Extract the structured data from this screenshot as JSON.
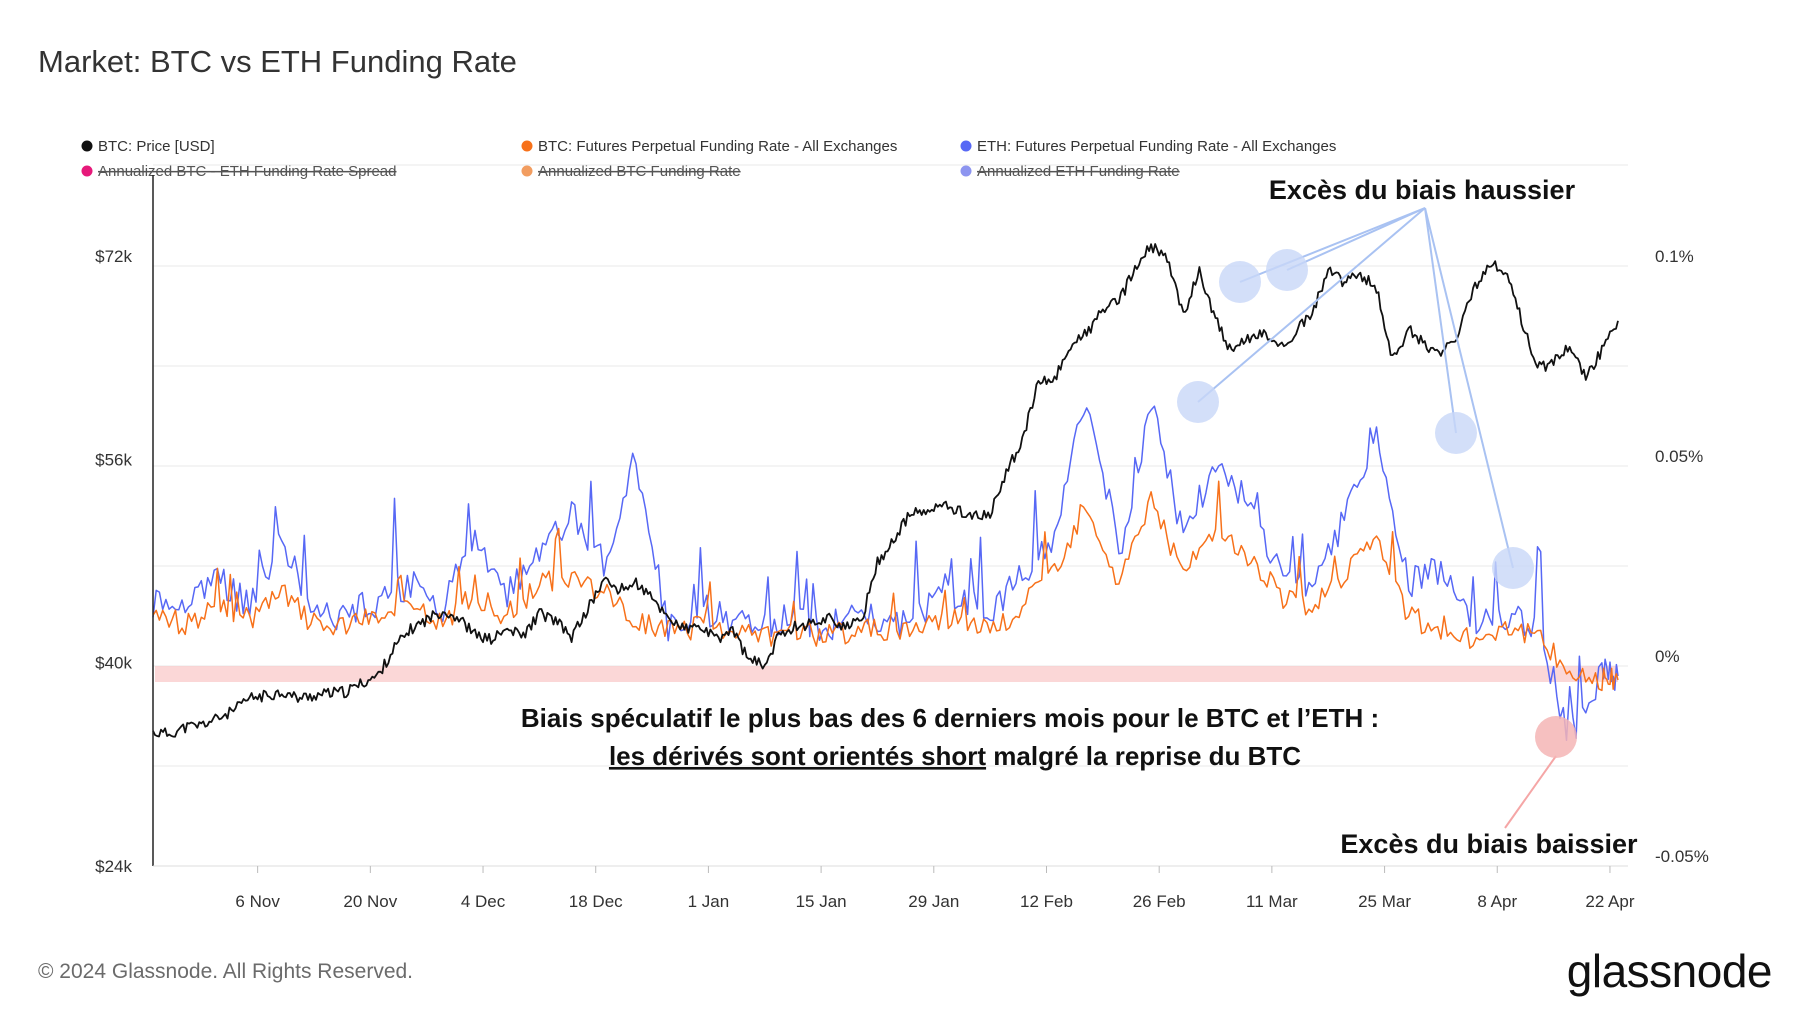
{
  "title": "Market: BTC vs ETH Funding Rate",
  "footer": "© 2024 Glassnode. All Rights Reserved.",
  "brand": "glassnode",
  "chart_data": {
    "type": "line",
    "x_tick_labels": [
      "6 Nov",
      "20 Nov",
      "4 Dec",
      "18 Dec",
      "1 Jan",
      "15 Jan",
      "29 Jan",
      "12 Feb",
      "26 Feb",
      "11 Mar",
      "25 Mar",
      "8 Apr",
      "22 Apr"
    ],
    "y_left_labels": [
      "$72k",
      "$56k",
      "$40k",
      "$24k"
    ],
    "y_left_values": [
      72000,
      56000,
      40000,
      24000
    ],
    "y_right_labels": [
      "0.1%",
      "0.05%",
      "0%",
      "-0.05%"
    ],
    "y_right_values": [
      0.1,
      0.05,
      0,
      -0.05
    ],
    "legend": [
      {
        "label": "BTC: Price [USD]",
        "color": "#111111",
        "active": true
      },
      {
        "label": "BTC: Futures Perpetual Funding Rate - All Exchanges",
        "color": "#f7711a",
        "active": true
      },
      {
        "label": "ETH: Futures Perpetual Funding Rate - All Exchanges",
        "color": "#5768f5",
        "active": true
      },
      {
        "label": "Annualized BTC - ETH Funding Rate Spread",
        "color": "#e6197a",
        "active": false
      },
      {
        "label": "Annualized BTC Funding Rate",
        "color": "#f29d60",
        "active": false
      },
      {
        "label": "Annualized ETH Funding Rate",
        "color": "#8d95f0",
        "active": false
      }
    ],
    "series": [
      {
        "name": "BTC: Price [USD]",
        "axis": "left",
        "color": "#111111",
        "x": [
          0,
          2,
          4,
          6,
          8,
          10,
          12,
          14,
          16,
          18,
          20,
          22,
          24,
          26,
          28,
          30,
          32,
          34,
          36,
          38,
          40,
          42,
          44,
          46,
          48,
          50,
          52,
          54,
          56,
          58,
          60,
          62,
          64,
          66,
          68,
          70,
          72,
          74,
          76,
          78,
          80,
          82,
          84,
          86,
          88,
          90,
          92,
          94,
          96,
          98,
          100,
          102,
          104,
          106,
          108,
          110,
          112,
          114,
          116,
          118,
          120,
          122,
          124,
          126,
          128,
          130,
          132,
          134,
          136,
          138,
          140,
          142,
          144,
          146,
          148,
          150,
          152,
          154,
          156,
          158,
          160,
          162,
          164,
          166,
          168,
          170,
          172,
          174,
          176,
          178,
          180,
          182
        ],
        "values": [
          34500,
          34400,
          34900,
          35100,
          35600,
          36200,
          37200,
          37400,
          37700,
          37200,
          37400,
          37600,
          37700,
          38400,
          39000,
          41200,
          42600,
          43400,
          44100,
          43500,
          42200,
          41800,
          42600,
          42100,
          43900,
          43300,
          42000,
          44200,
          46500,
          45700,
          46300,
          45000,
          43600,
          42600,
          42800,
          41800,
          42600,
          40200,
          39800,
          42400,
          42900,
          43100,
          43600,
          42700,
          43300,
          47900,
          49600,
          51700,
          51800,
          52400,
          52000,
          51500,
          51600,
          55000,
          57500,
          62000,
          62300,
          65000,
          65900,
          67800,
          68400,
          71000,
          72800,
          71700,
          67400,
          70800,
          67100,
          64300,
          65500,
          66000,
          64700,
          66100,
          67400,
          71000,
          69800,
          70600,
          69400,
          63900,
          66200,
          65100,
          64200,
          65600,
          69200,
          71500,
          70800,
          67000,
          63200,
          63600,
          65100,
          62400,
          64600,
          66900
        ]
      },
      {
        "name": "BTC: Futures Perpetual Funding Rate - All Exchanges",
        "axis": "right",
        "color": "#f7711a",
        "x": [
          0,
          4,
          8,
          12,
          16,
          20,
          24,
          28,
          32,
          36,
          40,
          44,
          48,
          52,
          56,
          60,
          64,
          68,
          72,
          76,
          80,
          84,
          88,
          92,
          96,
          100,
          104,
          108,
          112,
          116,
          120,
          124,
          128,
          132,
          136,
          140,
          144,
          148,
          152,
          156,
          160,
          164,
          168,
          172,
          176,
          180,
          182
        ],
        "values": [
          0.011,
          0.008,
          0.012,
          0.009,
          0.016,
          0.008,
          0.007,
          0.01,
          0.012,
          0.008,
          0.015,
          0.01,
          0.018,
          0.02,
          0.016,
          0.009,
          0.006,
          0.007,
          0.006,
          0.005,
          0.006,
          0.005,
          0.007,
          0.006,
          0.008,
          0.01,
          0.006,
          0.012,
          0.022,
          0.038,
          0.018,
          0.04,
          0.02,
          0.032,
          0.025,
          0.015,
          0.011,
          0.021,
          0.03,
          0.01,
          0.006,
          0.004,
          0.008,
          0.005,
          -0.004,
          -0.006,
          -0.006
        ]
      },
      {
        "name": "ETH: Futures Perpetual Funding Rate - All Exchanges",
        "axis": "right",
        "color": "#5768f5",
        "x": [
          0,
          4,
          8,
          12,
          16,
          20,
          24,
          28,
          32,
          36,
          40,
          44,
          48,
          52,
          56,
          60,
          64,
          68,
          72,
          76,
          80,
          84,
          88,
          92,
          96,
          100,
          104,
          108,
          112,
          116,
          120,
          124,
          128,
          132,
          136,
          140,
          144,
          148,
          152,
          156,
          160,
          164,
          168,
          172,
          176,
          180,
          182
        ],
        "values": [
          0.013,
          0.012,
          0.02,
          0.012,
          0.03,
          0.01,
          0.01,
          0.014,
          0.018,
          0.012,
          0.028,
          0.015,
          0.026,
          0.035,
          0.024,
          0.05,
          0.006,
          0.012,
          0.008,
          0.007,
          0.008,
          0.007,
          0.012,
          0.008,
          0.012,
          0.016,
          0.01,
          0.02,
          0.03,
          0.065,
          0.026,
          0.062,
          0.03,
          0.048,
          0.038,
          0.022,
          0.016,
          0.035,
          0.055,
          0.018,
          0.022,
          0.008,
          0.01,
          0.007,
          -0.02,
          -0.004,
          -0.005
        ]
      }
    ],
    "annotations": [
      {
        "text": "Excès du biais haussier"
      },
      {
        "text": "Excès du biais baissier"
      },
      {
        "text": "Biais spéculatif le plus bas des 6 derniers mois pour le BTC et l’ETH :"
      },
      {
        "text_underlined": "les dérivés sont orientés short",
        "text_rest": " malgré la reprise du BTC"
      }
    ]
  }
}
